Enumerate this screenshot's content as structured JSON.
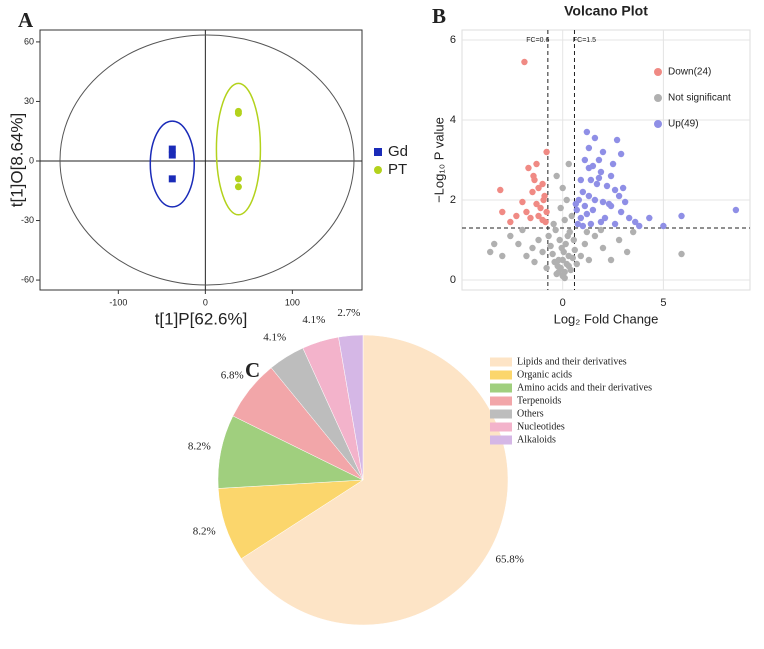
{
  "chart_data": [
    {
      "type": "scatter",
      "panel": "A",
      "xlabel": "t[1]P[62.6%]",
      "ylabel": "t[1]O[8.64%]",
      "xlim": [
        -190,
        180
      ],
      "ylim": [
        -65,
        66
      ],
      "xticks": [
        -100,
        0,
        100
      ],
      "yticks": [
        -60,
        -30,
        0,
        30,
        60
      ],
      "grid": false,
      "legend": "outside right",
      "ellipses": true,
      "reference_lines": {
        "x": [
          0
        ],
        "y": [
          0
        ],
        "style": "solid"
      },
      "series": [
        {
          "name": "Gd",
          "color": "#1a2bb8",
          "marker": "square",
          "x": [
            -38,
            -38,
            -38
          ],
          "y": [
            6,
            3,
            -9
          ]
        },
        {
          "name": "PT",
          "color": "#b3d21c",
          "marker": "circle",
          "x": [
            38,
            38,
            38,
            38
          ],
          "y": [
            25,
            24,
            -9,
            -13
          ]
        }
      ]
    },
    {
      "type": "scatter",
      "panel": "B",
      "title": "Volcano Plot",
      "xlabel": "Log₂ Fold Change",
      "ylabel": "−Log₁₀ P value",
      "xlim": [
        -5,
        9.3
      ],
      "ylim": [
        -0.25,
        6.25
      ],
      "xticks": [
        0,
        5
      ],
      "yticks": [
        0,
        2,
        4,
        6
      ],
      "grid": true,
      "legend": "upper right",
      "ellipses": false,
      "reference_lines": {
        "x": [
          -0.737,
          0.585
        ],
        "y": [
          1.301
        ],
        "style": "dashed",
        "labels": [
          "FC=0.6",
          "FC=1.5"
        ]
      },
      "series": [
        {
          "name": "Down(24)",
          "color": "#f08a84",
          "marker": "circle",
          "x": [
            -1.9,
            -0.8,
            -1.3,
            -1.7,
            -3.1,
            -1.4,
            -1.2,
            -1.0,
            -1.5,
            -0.9,
            -1.3,
            -2.0,
            -1.1,
            -0.8,
            -2.3,
            -1.6,
            -1.0,
            -0.85,
            -3.0,
            -1.2,
            -1.8,
            -0.95,
            -1.45,
            -2.6
          ],
          "y": [
            5.45,
            3.2,
            2.9,
            2.8,
            2.25,
            2.5,
            2.3,
            2.4,
            2.2,
            2.1,
            1.9,
            1.95,
            1.8,
            1.7,
            1.6,
            1.55,
            1.5,
            1.45,
            1.7,
            1.6,
            1.7,
            2.0,
            2.6,
            1.45
          ]
        },
        {
          "name": "Not significant",
          "color": "#b0b0b0",
          "marker": "circle",
          "x": [
            0,
            0.1,
            -0.1,
            0.2,
            -0.2,
            0.3,
            -0.3,
            0.05,
            -0.05,
            0.15,
            -0.15,
            0.25,
            -0.25,
            0.4,
            -0.4,
            0.5,
            -0.5,
            0.6,
            -0.6,
            0.35,
            -0.35,
            0.1,
            -0.1,
            0.2,
            0,
            -0.3,
            0.3,
            0.45,
            -0.45,
            0.55,
            -0.7,
            0.7,
            -0.8,
            0.9,
            -1.0,
            1.1,
            -1.2,
            1.3,
            -1.5,
            1.6,
            -1.8,
            2.0,
            -2.2,
            2.4,
            -2.6,
            2.8,
            -3.0,
            3.2,
            -3.4,
            -3.6,
            3.5,
            5.9,
            -2.0,
            1.9,
            -1.4,
            1.2,
            0,
            0.1,
            -0.2,
            0.3
          ],
          "y": [
            0.1,
            0.2,
            0.3,
            0.4,
            0.5,
            0.6,
            0.15,
            0.7,
            0.8,
            0.9,
            1.0,
            1.1,
            0.35,
            0.25,
            0.45,
            0.55,
            0.65,
            0.75,
            0.85,
            1.2,
            1.25,
            1.5,
            1.8,
            2.0,
            2.3,
            2.6,
            2.9,
            1.6,
            1.4,
            1.0,
            1.1,
            0.4,
            0.3,
            0.6,
            0.7,
            0.9,
            1.0,
            0.5,
            0.8,
            1.1,
            0.6,
            0.8,
            0.9,
            0.5,
            1.1,
            1.0,
            0.6,
            0.7,
            0.9,
            0.7,
            1.2,
            0.65,
            1.25,
            1.25,
            0.45,
            1.2,
            0.5,
            0.05,
            0.2,
            0.35
          ]
        },
        {
          "name": "Up(49)",
          "color": "#8f8fe6",
          "marker": "circle",
          "x": [
            1.2,
            1.6,
            2.7,
            1.3,
            2.0,
            1.8,
            2.9,
            1.1,
            1.5,
            1.9,
            2.4,
            0.9,
            1.4,
            1.7,
            2.2,
            2.6,
            3.0,
            1.0,
            1.3,
            2.8,
            0.8,
            1.6,
            2.0,
            3.1,
            1.1,
            2.4,
            0.7,
            1.5,
            2.9,
            1.2,
            3.3,
            0.9,
            2.1,
            3.6,
            4.3,
            5.0,
            5.9,
            8.6,
            1.9,
            2.6,
            0.75,
            1.4,
            3.8,
            1.0,
            2.3,
            1.8,
            2.5,
            0.65,
            1.3
          ],
          "y": [
            3.7,
            3.55,
            3.5,
            3.3,
            3.2,
            3.0,
            3.15,
            3.0,
            2.85,
            2.7,
            2.6,
            2.5,
            2.5,
            2.4,
            2.35,
            2.25,
            2.3,
            2.2,
            2.1,
            2.1,
            2.0,
            2.0,
            1.95,
            1.95,
            1.85,
            1.85,
            1.75,
            1.75,
            1.7,
            1.65,
            1.55,
            1.55,
            1.55,
            1.45,
            1.55,
            1.35,
            1.6,
            1.75,
            1.45,
            1.4,
            1.4,
            1.4,
            1.35,
            1.35,
            1.9,
            2.55,
            2.9,
            1.9,
            2.8
          ]
        }
      ]
    },
    {
      "type": "pie",
      "panel": "C",
      "categories": [
        "Lipids and their derivatives",
        "Organic acids",
        "Amino acids and their derivatives",
        "Terpenoids",
        "Others",
        "Nucleotides",
        "Alkaloids"
      ],
      "values": [
        65.8,
        8.2,
        8.2,
        6.8,
        4.1,
        4.1,
        2.7
      ],
      "value_labels": [
        "65.8%",
        "8.2%",
        "8.2%",
        "6.8%",
        "4.1%",
        "4.1%",
        "2.7%"
      ],
      "colors": [
        "#fde4c6",
        "#fbd66c",
        "#a0cf7e",
        "#f2a6a9",
        "#bdbdbd",
        "#f3b3cb",
        "#d5b7e6"
      ]
    }
  ]
}
